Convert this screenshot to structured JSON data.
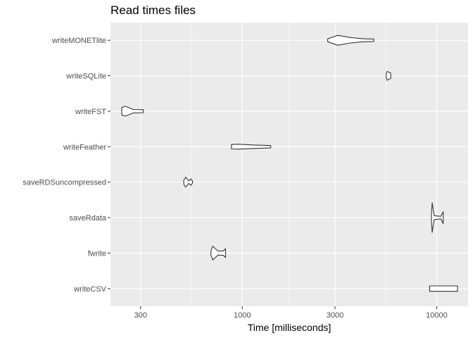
{
  "chart_data": {
    "type": "violin",
    "title": "Read times files",
    "xlabel": "Time [milliseconds]",
    "ylabel": "",
    "x_scale": "log10",
    "xlim": [
      210,
      14500
    ],
    "x_ticks": [
      300,
      1000,
      3000,
      10000
    ],
    "x_tick_labels": [
      "300",
      "1000",
      "3000",
      "10000"
    ],
    "grid": true,
    "legend": "none",
    "categories": [
      "writeMONETlite",
      "writeSQLite",
      "writeFST",
      "writeFeather",
      "saveRDSuncompressed",
      "saveRdata",
      "fwrite",
      "writeCSV"
    ],
    "series": [
      {
        "category": "writeMONETlite",
        "values": [
          2750,
          2900,
          3200,
          3700,
          4250,
          4750
        ],
        "shape_x": [
          2750,
          3100,
          3600,
          4200,
          4750
        ],
        "shape_w": [
          0.3,
          1.0,
          0.55,
          0.3,
          0.25
        ]
      },
      {
        "category": "writeSQLite",
        "values": [
          5500,
          5560,
          5700,
          5800
        ],
        "shape_x": [
          5500,
          5560,
          5650,
          5800
        ],
        "shape_w": [
          0.35,
          0.9,
          0.75,
          0.55
        ]
      },
      {
        "category": "writeFST",
        "values": [
          240,
          250,
          280,
          310
        ],
        "shape_x": [
          240,
          250,
          275,
          310
        ],
        "shape_w": [
          0.75,
          1.0,
          0.35,
          0.3
        ]
      },
      {
        "category": "writeFeather",
        "values": [
          880,
          950,
          1150,
          1400
        ],
        "shape_x": [
          880,
          950,
          1150,
          1400
        ],
        "shape_w": [
          0.45,
          0.5,
          0.35,
          0.25
        ]
      },
      {
        "category": "saveRDSuncompressed",
        "values": [
          500,
          515,
          540,
          555
        ],
        "shape_x": [
          500,
          512,
          530,
          545,
          555
        ],
        "shape_w": [
          0.4,
          1.0,
          0.25,
          0.65,
          0.15
        ]
      },
      {
        "category": "saveRdata",
        "values": [
          9400,
          9500,
          10500,
          10800
        ],
        "shape_x": [
          9400,
          9480,
          9700,
          10500,
          10800
        ],
        "shape_w": [
          0.6,
          3.0,
          0.4,
          0.25,
          1.2
        ]
      },
      {
        "category": "fwrite",
        "values": [
          690,
          720,
          780,
          820
        ],
        "shape_x": [
          690,
          705,
          750,
          800,
          820
        ],
        "shape_w": [
          0.4,
          1.4,
          0.4,
          0.45,
          0.9
        ]
      },
      {
        "category": "writeCSV",
        "values": [
          9200,
          11000,
          12800
        ],
        "shape_x": [
          9200,
          9300,
          12800
        ],
        "shape_w": [
          0.55,
          0.55,
          0.55
        ]
      }
    ]
  }
}
